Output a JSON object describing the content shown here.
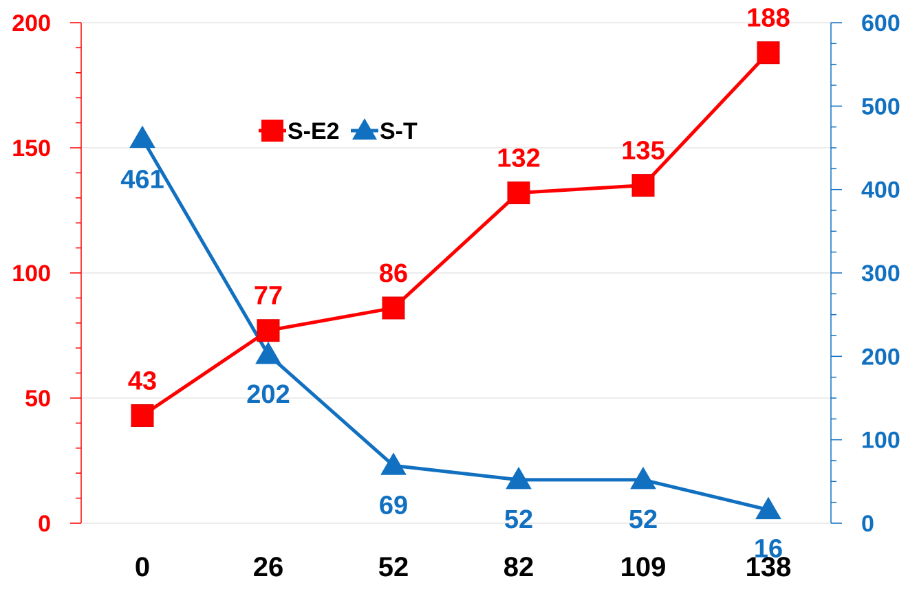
{
  "chart_data": {
    "type": "line",
    "title": "",
    "xlabel": "",
    "ylabel": "",
    "y2label": "",
    "categories": [
      "0",
      "26",
      "52",
      "82",
      "109",
      "138"
    ],
    "series": [
      {
        "name": "S-E2",
        "axis": "left",
        "marker": "square",
        "color": "#ff0000",
        "values": [
          43,
          77,
          86,
          132,
          135,
          188
        ],
        "labels": [
          "43",
          "77",
          "86",
          "132",
          "135",
          "188"
        ]
      },
      {
        "name": "S-T",
        "axis": "right",
        "marker": "triangle",
        "color": "#1170c0",
        "values": [
          461,
          202,
          69,
          52,
          52,
          16
        ],
        "labels": [
          "461",
          "202",
          "69",
          "52",
          "52",
          "16"
        ]
      }
    ],
    "ylim": [
      0,
      200
    ],
    "y2lim": [
      0,
      600
    ],
    "y_ticks": [
      "0",
      "50",
      "100",
      "150",
      "200"
    ],
    "y2_ticks": [
      "0",
      "100",
      "200",
      "300",
      "400",
      "500",
      "600"
    ],
    "left_axis_color": "#ff0000",
    "right_axis_color": "#1170c0",
    "grid": true,
    "legend_position": "top-left"
  }
}
